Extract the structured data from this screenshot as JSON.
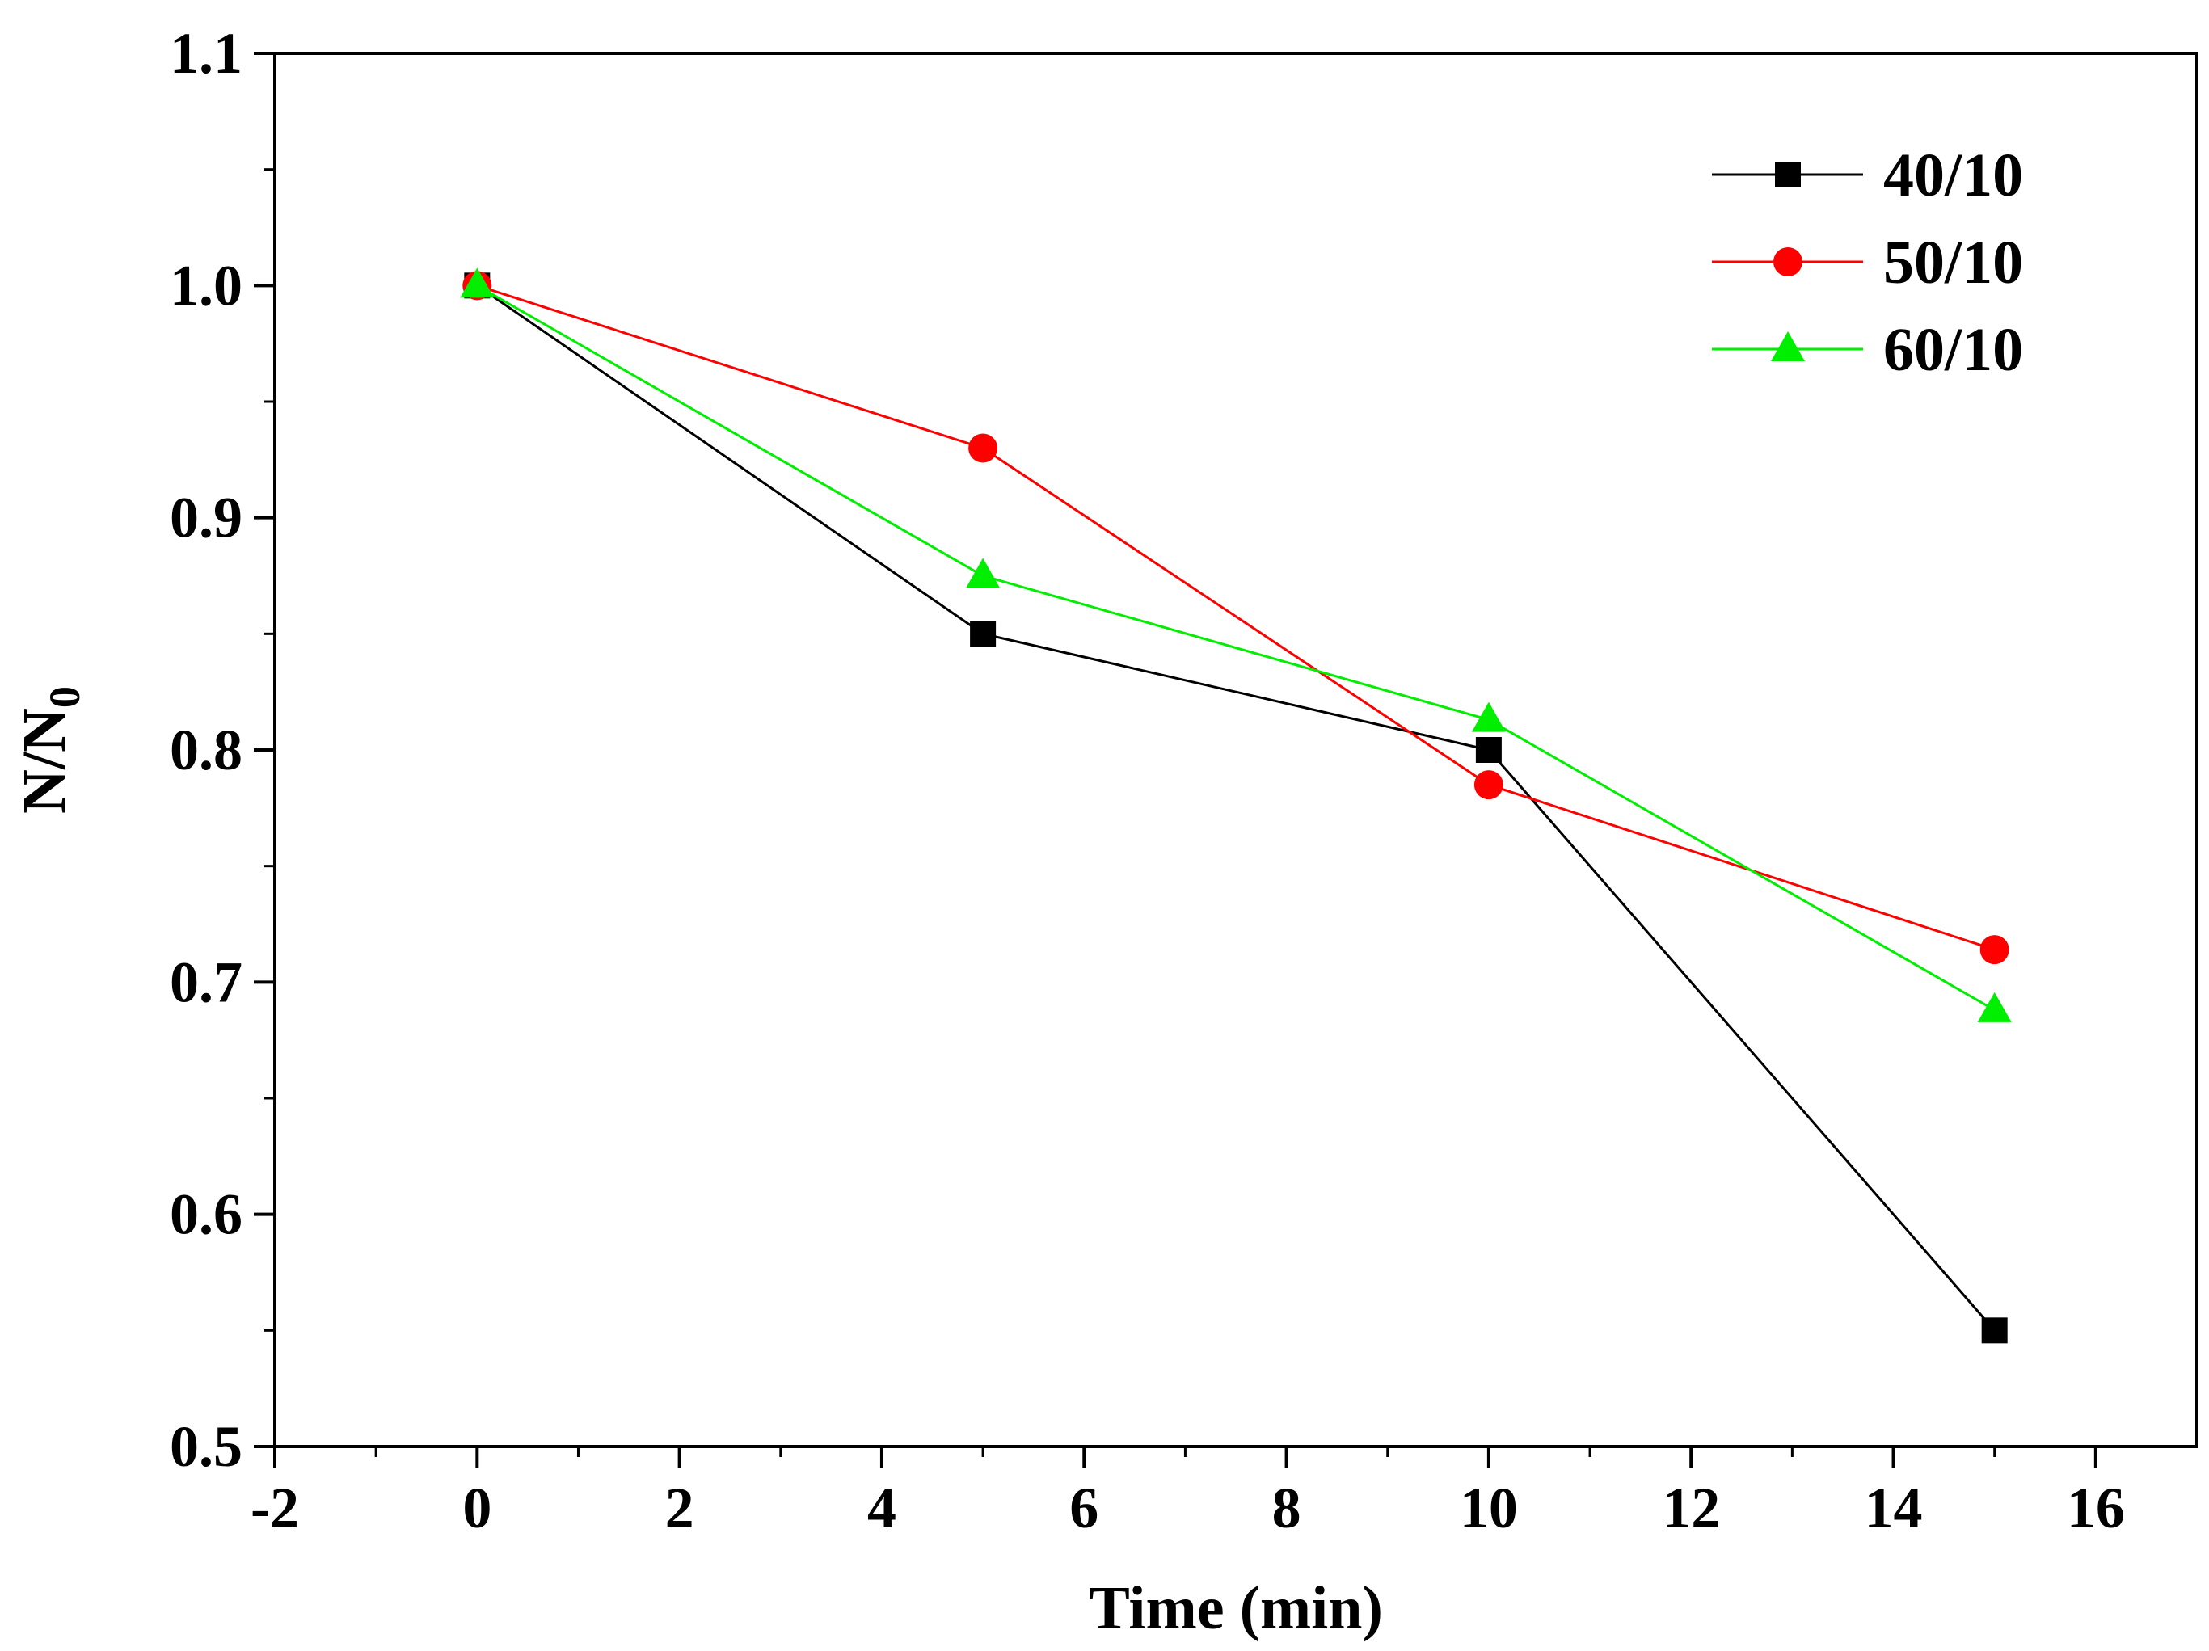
{
  "chart_data": {
    "type": "line",
    "title": "",
    "xlabel": "Time (min)",
    "ylabel_main": "N/N",
    "ylabel_sub": "0",
    "xlim": [
      -2,
      17
    ],
    "ylim": [
      0.5,
      1.1
    ],
    "xticks": [
      -2,
      0,
      2,
      4,
      6,
      8,
      10,
      12,
      14,
      16
    ],
    "xtick_labels": [
      "-2",
      "0",
      "2",
      "4",
      "6",
      "8",
      "10",
      "12",
      "14",
      "16"
    ],
    "yticks": [
      0.5,
      0.6,
      0.7,
      0.8,
      0.9,
      1.0,
      1.1
    ],
    "ytick_labels": [
      "0.5",
      "0.6",
      "0.7",
      "0.8",
      "0.9",
      "1.0",
      "1.1"
    ],
    "grid": false,
    "legend_position": "top-right",
    "series": [
      {
        "name": "40/10",
        "marker": "square",
        "color": "#000000",
        "x": [
          0,
          5,
          10,
          15
        ],
        "y": [
          1.0,
          0.85,
          0.8,
          0.55
        ]
      },
      {
        "name": "50/10",
        "marker": "circle",
        "color": "#ff0000",
        "x": [
          0,
          5,
          10,
          15
        ],
        "y": [
          1.0,
          0.93,
          0.785,
          0.714
        ]
      },
      {
        "name": "60/10",
        "marker": "triangle",
        "color": "#00ee00",
        "x": [
          0,
          5,
          10,
          15
        ],
        "y": [
          1.0,
          0.875,
          0.813,
          0.688
        ]
      }
    ]
  }
}
